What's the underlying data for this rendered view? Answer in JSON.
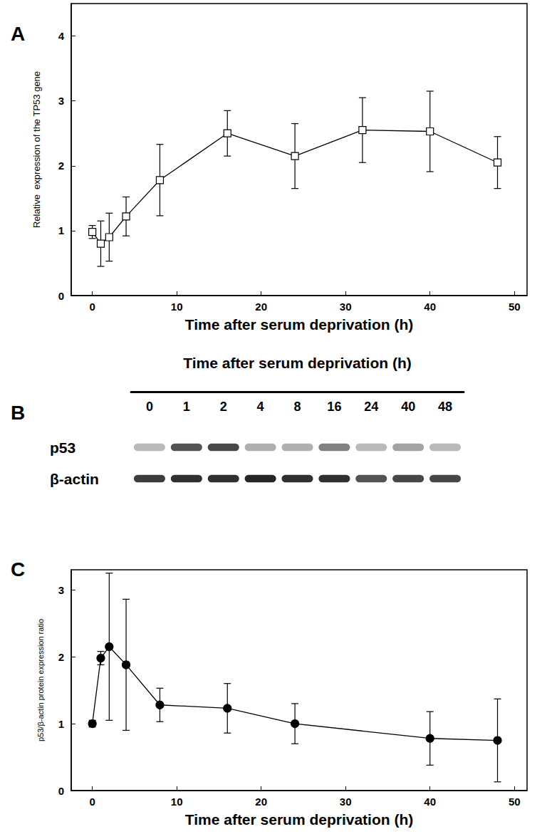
{
  "chart_data": [
    {
      "type": "line",
      "title": "A",
      "xlabel": "Time after serum deprivation (h)",
      "ylabel": "Relative  expression of the TP53 gene",
      "x": [
        0,
        1,
        2,
        4,
        8,
        16,
        24,
        32,
        40,
        48
      ],
      "values": [
        0.98,
        0.8,
        0.9,
        1.22,
        1.78,
        2.5,
        2.15,
        2.55,
        2.53,
        2.05
      ],
      "errors": [
        0.1,
        0.35,
        0.37,
        0.3,
        0.55,
        0.35,
        0.5,
        0.5,
        0.62,
        0.4
      ],
      "xlim": [
        -2.5,
        51.5
      ],
      "xticks": [
        0,
        10,
        20,
        30,
        40,
        50
      ],
      "ylim": [
        0,
        4.5
      ],
      "yticks": [
        0,
        1,
        2,
        3,
        4
      ],
      "marker": "open_square",
      "color": "#000000",
      "grid": false
    },
    {
      "type": "blot",
      "title": "B",
      "xlabel": "Time after serum deprivation (h)",
      "categories": [
        "0",
        "1",
        "2",
        "4",
        "8",
        "16",
        "24",
        "40",
        "48"
      ],
      "series": [
        {
          "name": "p53",
          "values": [
            0.3,
            0.75,
            0.8,
            0.35,
            0.35,
            0.55,
            0.3,
            0.4,
            0.3
          ]
        },
        {
          "name": "β-actin",
          "values": [
            0.85,
            0.9,
            0.9,
            0.95,
            0.9,
            0.9,
            0.75,
            0.8,
            0.8
          ]
        }
      ]
    },
    {
      "type": "line",
      "title": "C",
      "xlabel": "Time after serum deprivation (h)",
      "ylabel": "p53/β-actin protein expression ratio",
      "x": [
        0,
        1,
        2,
        4,
        8,
        16,
        24,
        40,
        48
      ],
      "values": [
        1.0,
        1.98,
        2.15,
        1.88,
        1.28,
        1.23,
        1.0,
        0.78,
        0.75
      ],
      "errors": [
        0.05,
        0.1,
        1.1,
        0.98,
        0.25,
        0.37,
        0.3,
        0.4,
        0.62
      ],
      "xlim": [
        -2.5,
        51.5
      ],
      "xticks": [
        0,
        10,
        20,
        30,
        40,
        50
      ],
      "ylim": [
        0,
        3.3
      ],
      "yticks": [
        0,
        1,
        2,
        3
      ],
      "marker": "circle",
      "color": "#000000",
      "grid": false
    }
  ]
}
